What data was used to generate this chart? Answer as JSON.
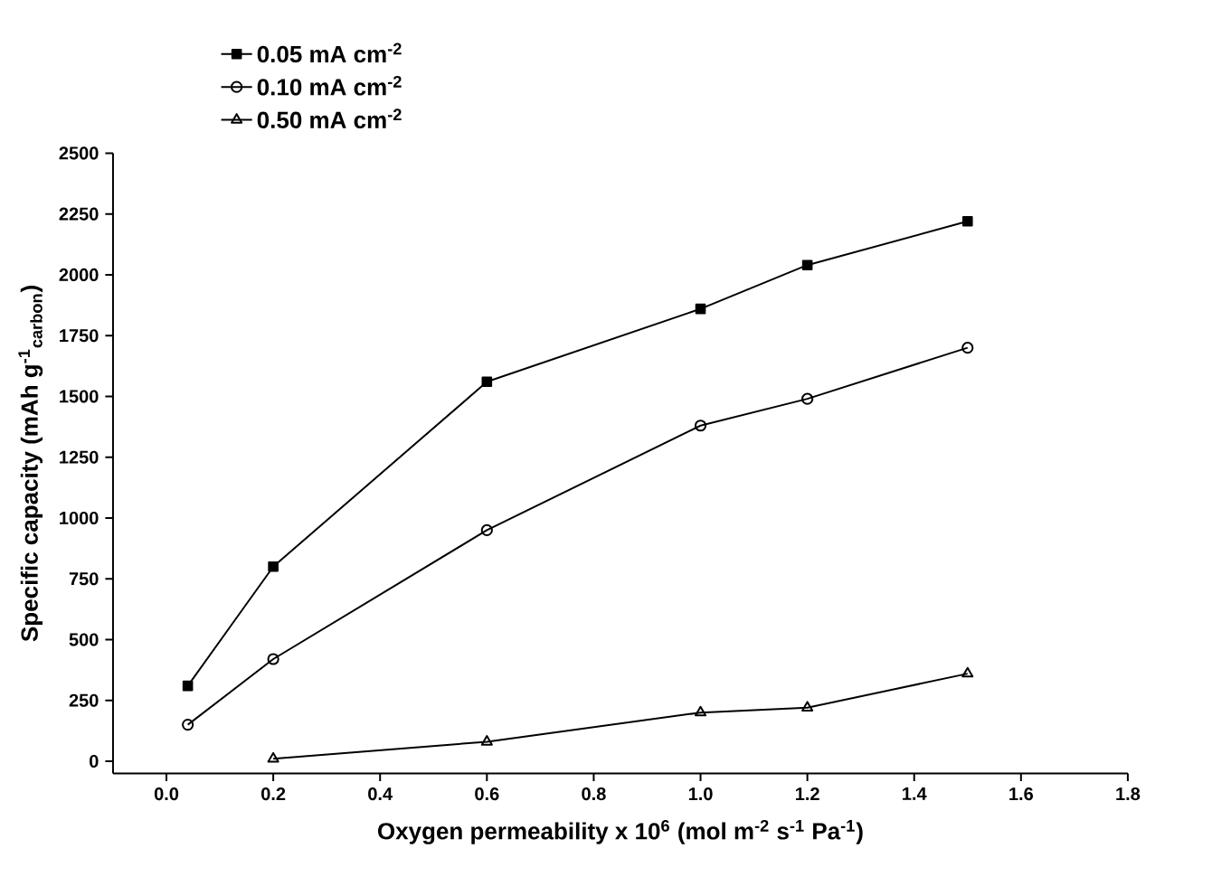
{
  "chart_data": {
    "type": "line",
    "xlabel": "Oxygen permeability x 10$^{6}$ (mol m$^{-2}$ s$^{-1}$ Pa$^{-1}$)",
    "ylabel": "Specific capacity (mAh g$^{-1}$$_{carbon}$)",
    "xlim": [
      -0.1,
      1.8
    ],
    "ylim": [
      -50,
      2500
    ],
    "xticks": [
      {
        "value": 0,
        "label": "0.0"
      },
      {
        "value": 0.2,
        "label": "0.2"
      },
      {
        "value": 0.4,
        "label": "0.4"
      },
      {
        "value": 0.6,
        "label": "0.6"
      },
      {
        "value": 0.8,
        "label": "0.8"
      },
      {
        "value": 1.0,
        "label": "1.0"
      },
      {
        "value": 1.2,
        "label": "1.2"
      },
      {
        "value": 1.4,
        "label": "1.4"
      },
      {
        "value": 1.6,
        "label": "1.6"
      },
      {
        "value": 1.8,
        "label": "1.8"
      }
    ],
    "yticks": [
      0,
      250,
      500,
      750,
      1000,
      1250,
      1500,
      1750,
      2000,
      2250,
      2500
    ],
    "legend": "top left",
    "grid": false,
    "line_style": "solid",
    "series": [
      {
        "name": "0.05 mA cm$^{-2}$",
        "color": "#000000",
        "marker": "square",
        "x": [
          0.04,
          0.2,
          0.6,
          1.0,
          1.2,
          1.5
        ],
        "values": [
          310,
          800,
          1560,
          1860,
          2040,
          2220
        ]
      },
      {
        "name": "0.10 mA cm$^{-2}$",
        "color": "#000000",
        "marker": "circle",
        "x": [
          0.04,
          0.2,
          0.6,
          1.0,
          1.2,
          1.5
        ],
        "values": [
          150,
          420,
          950,
          1380,
          1490,
          1700
        ]
      },
      {
        "name": "0.50 mA cm$^{-2}$",
        "color": "#000000",
        "marker": "triangle",
        "x": [
          0.2,
          0.6,
          1.0,
          1.2,
          1.5
        ],
        "values": [
          10,
          80,
          200,
          220,
          360
        ]
      }
    ]
  }
}
